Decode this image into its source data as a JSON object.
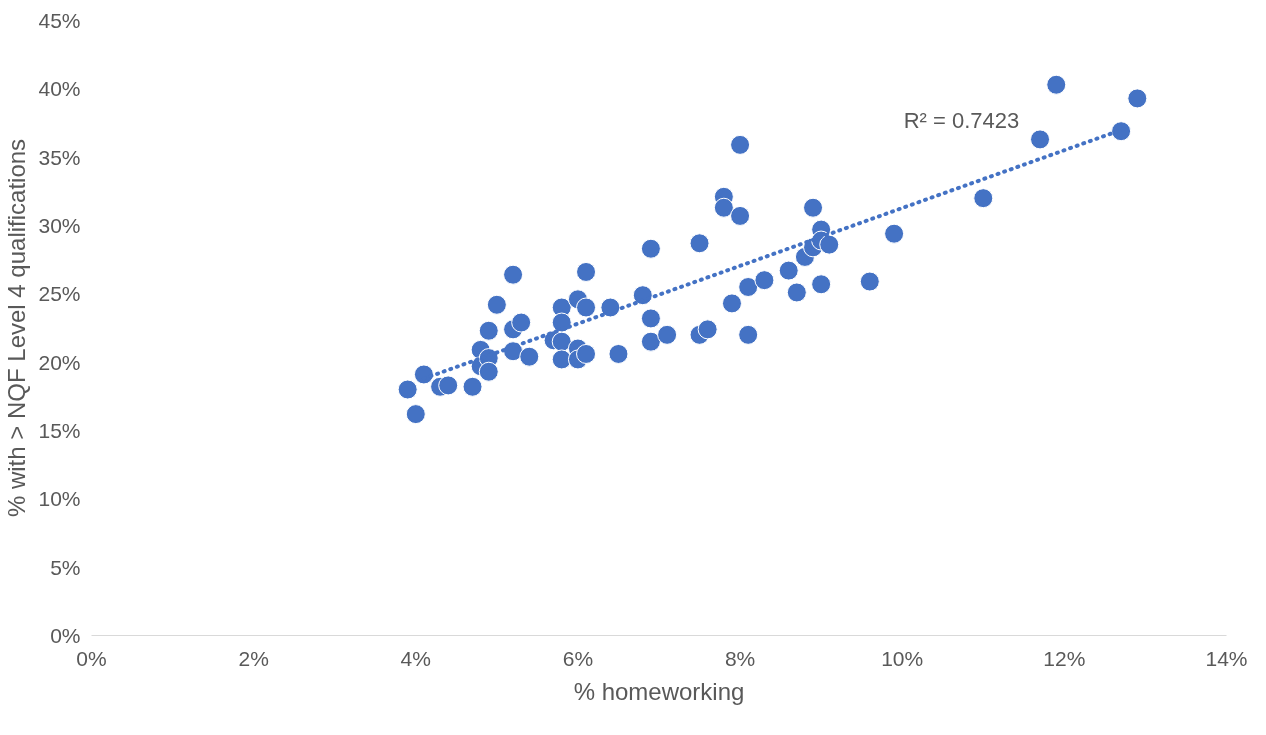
{
  "chart_data": {
    "type": "scatter",
    "xlabel": "% homeworking",
    "ylabel": "% with > NQF Level 4 qualifications",
    "x": [
      3.9,
      4.0,
      4.1,
      4.3,
      4.4,
      4.7,
      4.8,
      4.8,
      4.9,
      4.9,
      4.9,
      5.0,
      5.2,
      5.2,
      5.3,
      5.2,
      5.4,
      5.7,
      5.8,
      5.8,
      5.8,
      5.8,
      6.0,
      6.0,
      6.0,
      6.1,
      6.1,
      6.1,
      6.4,
      6.5,
      6.8,
      6.9,
      6.9,
      6.9,
      7.1,
      7.5,
      7.5,
      7.6,
      7.8,
      7.8,
      8.0,
      8.0,
      7.9,
      8.1,
      8.1,
      8.3,
      8.6,
      8.7,
      8.8,
      8.9,
      8.9,
      9.0,
      9.0,
      9.1,
      9.0,
      9.6,
      9.9,
      11.0,
      11.7,
      11.9,
      12.7,
      12.9
    ],
    "series": [
      {
        "color": "#4472c4",
        "marker": "circle",
        "values": [
          18.0,
          16.2,
          19.1,
          18.2,
          18.3,
          18.2,
          20.9,
          19.7,
          22.3,
          20.3,
          19.3,
          24.2,
          26.4,
          22.4,
          22.9,
          20.8,
          20.4,
          21.6,
          24.0,
          22.9,
          21.5,
          20.2,
          24.6,
          21.0,
          20.2,
          20.6,
          26.6,
          24.0,
          24.0,
          20.6,
          24.9,
          28.3,
          23.2,
          21.5,
          22.0,
          28.7,
          22.0,
          22.4,
          32.1,
          31.3,
          35.9,
          30.7,
          24.3,
          25.5,
          22.0,
          26.0,
          26.7,
          25.1,
          27.7,
          31.3,
          28.4,
          29.7,
          28.9,
          28.6,
          25.7,
          25.9,
          29.4,
          32.0,
          36.3,
          40.3,
          36.9,
          39.3
        ]
      },
      {
        "type": "line",
        "color": "#4472c4",
        "line_style": "dotted",
        "x": [
          4.1,
          12.8
        ],
        "values": [
          18.8,
          37.2
        ]
      }
    ],
    "annotations": [
      "R² = 0.7423"
    ],
    "xlim": [
      0,
      14
    ],
    "ylim": [
      0,
      45
    ],
    "xticks": [
      {
        "value": 0,
        "label": "0%"
      },
      {
        "value": 2,
        "label": "2%"
      },
      {
        "value": 4,
        "label": "4%"
      },
      {
        "value": 6,
        "label": "6%"
      },
      {
        "value": 8,
        "label": "8%"
      },
      {
        "value": 10,
        "label": "10%"
      },
      {
        "value": 12,
        "label": "12%"
      },
      {
        "value": 14,
        "label": "14%"
      }
    ],
    "yticks": [
      {
        "value": 0,
        "label": "0%"
      },
      {
        "value": 5,
        "label": "5%"
      },
      {
        "value": 10,
        "label": "10%"
      },
      {
        "value": 15,
        "label": "15%"
      },
      {
        "value": 20,
        "label": "20%"
      },
      {
        "value": 25,
        "label": "25%"
      },
      {
        "value": 30,
        "label": "30%"
      },
      {
        "value": 35,
        "label": "35%"
      },
      {
        "value": 40,
        "label": "40%"
      },
      {
        "value": 45,
        "label": "45%"
      }
    ],
    "grid": false
  }
}
